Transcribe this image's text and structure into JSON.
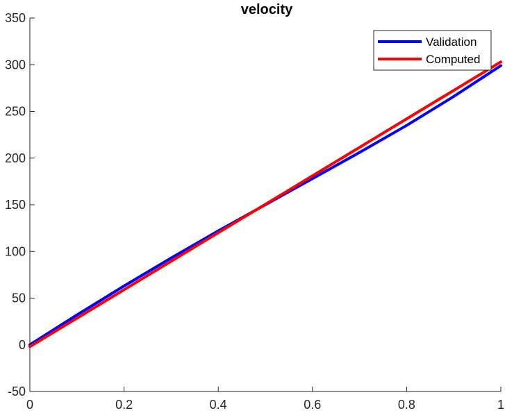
{
  "chart_data": {
    "type": "line",
    "title": "velocity",
    "xlabel": "",
    "ylabel": "",
    "xlim": [
      0,
      1
    ],
    "ylim": [
      -50,
      350
    ],
    "xticks": [
      0,
      0.2,
      0.4,
      0.6,
      0.8,
      1
    ],
    "xtick_labels": [
      "0",
      "0.2",
      "0.4",
      "0.6",
      "0.8",
      "1"
    ],
    "yticks": [
      -50,
      0,
      50,
      100,
      150,
      200,
      250,
      300,
      350
    ],
    "ytick_labels": [
      "-50",
      "0",
      "50",
      "100",
      "150",
      "200",
      "250",
      "300",
      "350"
    ],
    "grid": false,
    "legend_position": "top-right",
    "series": [
      {
        "name": "Validation",
        "color": "#0000ff",
        "x": [
          0,
          0.1,
          0.2,
          0.3,
          0.4,
          0.5,
          0.6,
          0.7,
          0.8,
          0.9,
          1.0
        ],
        "y": [
          0,
          32,
          63,
          93,
          122,
          150,
          178,
          206,
          235,
          266,
          299
        ]
      },
      {
        "name": "Computed",
        "color": "#ff0000",
        "x": [
          0,
          0.1,
          0.2,
          0.3,
          0.4,
          0.5,
          0.6,
          0.7,
          0.8,
          0.9,
          1.0
        ],
        "y": [
          -2,
          28.5,
          59,
          89.5,
          120,
          150.5,
          181,
          211.5,
          242,
          272.5,
          303
        ]
      }
    ]
  }
}
